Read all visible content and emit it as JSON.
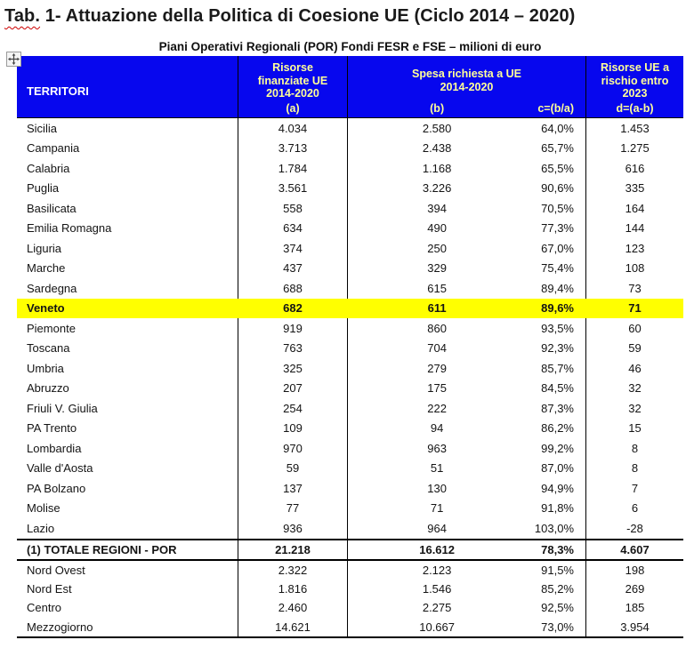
{
  "title": {
    "prefix": "Tab.",
    "rest": " 1- Attuazione della Politica di Coesione UE (Ciclo 2014 – 2020)"
  },
  "caption": "Piani Operativi Regionali (POR) Fondi FESR e FSE – milioni di euro",
  "colors": {
    "header_bg": "#0707EE",
    "header_text": "#FFFFFF",
    "header_accent_text": "#FFFF99",
    "highlight_row": "#FFFF00",
    "border": "#000000"
  },
  "icons": {
    "move_handle": "table-move-handle-icon"
  },
  "header": {
    "territori": "TERRITORI",
    "col_a_lines": [
      "Risorse",
      "finanziate UE",
      "2014-2020"
    ],
    "col_a_sub": "(a)",
    "col_bc_lines": [
      "Spesa richiesta a UE",
      "2014-2020"
    ],
    "col_b_sub": "(b)",
    "col_c_sub": "c=(b/a)",
    "col_d_lines": [
      "Risorse UE a",
      "rischio entro",
      "2023"
    ],
    "col_d_sub": "d=(a-b)"
  },
  "table": {
    "rows": [
      {
        "label": "Sicilia",
        "a": "4.034",
        "b": "2.580",
        "c": "64,0%",
        "d": "1.453",
        "style": "region"
      },
      {
        "label": "Campania",
        "a": "3.713",
        "b": "2.438",
        "c": "65,7%",
        "d": "1.275",
        "style": "region"
      },
      {
        "label": "Calabria",
        "a": "1.784",
        "b": "1.168",
        "c": "65,5%",
        "d": "616",
        "style": "region"
      },
      {
        "label": "Puglia",
        "a": "3.561",
        "b": "3.226",
        "c": "90,6%",
        "d": "335",
        "style": "region"
      },
      {
        "label": "Basilicata",
        "a": "558",
        "b": "394",
        "c": "70,5%",
        "d": "164",
        "style": "region"
      },
      {
        "label": "Emilia Romagna",
        "a": "634",
        "b": "490",
        "c": "77,3%",
        "d": "144",
        "style": "region"
      },
      {
        "label": "Liguria",
        "a": "374",
        "b": "250",
        "c": "67,0%",
        "d": "123",
        "style": "region"
      },
      {
        "label": "Marche",
        "a": "437",
        "b": "329",
        "c": "75,4%",
        "d": "108",
        "style": "region"
      },
      {
        "label": "Sardegna",
        "a": "688",
        "b": "615",
        "c": "89,4%",
        "d": "73",
        "style": "region"
      },
      {
        "label": "Veneto",
        "a": "682",
        "b": "611",
        "c": "89,6%",
        "d": "71",
        "style": "highlight"
      },
      {
        "label": "Piemonte",
        "a": "919",
        "b": "860",
        "c": "93,5%",
        "d": "60",
        "style": "region"
      },
      {
        "label": "Toscana",
        "a": "763",
        "b": "704",
        "c": "92,3%",
        "d": "59",
        "style": "region"
      },
      {
        "label": "Umbria",
        "a": "325",
        "b": "279",
        "c": "85,7%",
        "d": "46",
        "style": "region"
      },
      {
        "label": "Abruzzo",
        "a": "207",
        "b": "175",
        "c": "84,5%",
        "d": "32",
        "style": "region"
      },
      {
        "label": "Friuli V. Giulia",
        "a": "254",
        "b": "222",
        "c": "87,3%",
        "d": "32",
        "style": "region"
      },
      {
        "label": "PA Trento",
        "a": "109",
        "b": "94",
        "c": "86,2%",
        "d": "15",
        "style": "region"
      },
      {
        "label": "Lombardia",
        "a": "970",
        "b": "963",
        "c": "99,2%",
        "d": "8",
        "style": "region"
      },
      {
        "label": "Valle d'Aosta",
        "a": "59",
        "b": "51",
        "c": "87,0%",
        "d": "8",
        "style": "region"
      },
      {
        "label": "PA Bolzano",
        "a": "137",
        "b": "130",
        "c": "94,9%",
        "d": "7",
        "style": "region"
      },
      {
        "label": "Molise",
        "a": "77",
        "b": "71",
        "c": "91,8%",
        "d": "6",
        "style": "region"
      },
      {
        "label": "Lazio",
        "a": "936",
        "b": "964",
        "c": "103,0%",
        "d": "-28",
        "style": "region"
      },
      {
        "label": "(1) TOTALE REGIONI - POR",
        "a": "21.218",
        "b": "16.612",
        "c": "78,3%",
        "d": "4.607",
        "style": "total"
      },
      {
        "label": "Nord Ovest",
        "a": "2.322",
        "b": "2.123",
        "c": "91,5%",
        "d": "198",
        "style": "area"
      },
      {
        "label": "Nord Est",
        "a": "1.816",
        "b": "1.546",
        "c": "85,2%",
        "d": "269",
        "style": "area"
      },
      {
        "label": "Centro",
        "a": "2.460",
        "b": "2.275",
        "c": "92,5%",
        "d": "185",
        "style": "area"
      },
      {
        "label": "Mezzogiorno",
        "a": "14.621",
        "b": "10.667",
        "c": "73,0%",
        "d": "3.954",
        "style": "area"
      }
    ]
  }
}
